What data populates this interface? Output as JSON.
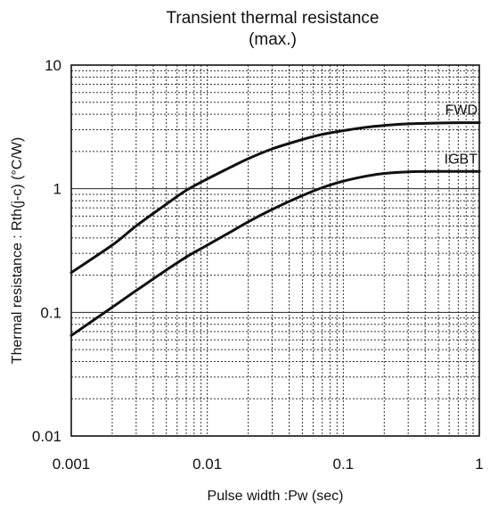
{
  "chart_data": {
    "type": "line",
    "title_line1": "Transient thermal resistance",
    "title_line2": "(max.)",
    "xlabel": "Pulse width :Pw (sec)",
    "ylabel": "Thermal resistance : Rth(j-c)  (°C/W)",
    "xscale": "log",
    "yscale": "log",
    "xlim": [
      0.001,
      1
    ],
    "ylim": [
      0.01,
      10
    ],
    "grid": true,
    "x_ticks": [
      {
        "value": 0.001,
        "label": "0.001"
      },
      {
        "value": 0.01,
        "label": "0.01"
      },
      {
        "value": 0.1,
        "label": "0.1"
      },
      {
        "value": 1,
        "label": "1"
      }
    ],
    "y_ticks": [
      {
        "value": 0.01,
        "label": "0.01"
      },
      {
        "value": 0.1,
        "label": "0.1"
      },
      {
        "value": 1,
        "label": "1"
      },
      {
        "value": 10,
        "label": "10"
      }
    ],
    "series": [
      {
        "name": "FWD",
        "x": [
          0.001,
          0.002,
          0.003,
          0.005,
          0.007,
          0.01,
          0.015,
          0.02,
          0.03,
          0.05,
          0.07,
          0.1,
          0.15,
          0.2,
          0.3,
          0.5,
          0.7,
          1
        ],
        "y": [
          0.21,
          0.35,
          0.5,
          0.75,
          0.97,
          1.2,
          1.5,
          1.75,
          2.1,
          2.5,
          2.75,
          2.95,
          3.15,
          3.25,
          3.35,
          3.4,
          3.42,
          3.42
        ]
      },
      {
        "name": "IGBT",
        "x": [
          0.001,
          0.002,
          0.003,
          0.005,
          0.007,
          0.01,
          0.015,
          0.02,
          0.03,
          0.05,
          0.07,
          0.1,
          0.15,
          0.2,
          0.3,
          0.5,
          0.7,
          1
        ],
        "y": [
          0.065,
          0.11,
          0.15,
          0.22,
          0.28,
          0.35,
          0.45,
          0.54,
          0.68,
          0.88,
          1.02,
          1.15,
          1.27,
          1.33,
          1.37,
          1.38,
          1.38,
          1.38
        ]
      }
    ]
  }
}
